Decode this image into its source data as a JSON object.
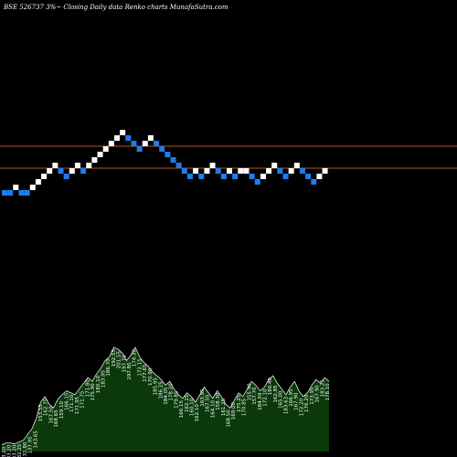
{
  "chart_data": {
    "type": "renko",
    "title": "BSE 526737 3%~  Closing Daily data  Renko  charts MunafaSutra.com",
    "colors": {
      "background": "#000000",
      "up_brick": "#ffffff",
      "down_brick": "#1e7cf0",
      "reference_line": "#b8541c",
      "volume_fill": "#0a3a0a",
      "volume_outline": "#ffffff",
      "text": "#ffffff"
    },
    "bricks": [
      {
        "dir": "down",
        "level": 0
      },
      {
        "dir": "down",
        "level": 0
      },
      {
        "dir": "up",
        "level": 1
      },
      {
        "dir": "down",
        "level": 0
      },
      {
        "dir": "down",
        "level": 0
      },
      {
        "dir": "up",
        "level": 1
      },
      {
        "dir": "up",
        "level": 2
      },
      {
        "dir": "up",
        "level": 3
      },
      {
        "dir": "up",
        "level": 4
      },
      {
        "dir": "up",
        "level": 5
      },
      {
        "dir": "down",
        "level": 4
      },
      {
        "dir": "down",
        "level": 3
      },
      {
        "dir": "up",
        "level": 4
      },
      {
        "dir": "up",
        "level": 5
      },
      {
        "dir": "down",
        "level": 4
      },
      {
        "dir": "up",
        "level": 5
      },
      {
        "dir": "up",
        "level": 6
      },
      {
        "dir": "up",
        "level": 7
      },
      {
        "dir": "up",
        "level": 8
      },
      {
        "dir": "up",
        "level": 9
      },
      {
        "dir": "up",
        "level": 10
      },
      {
        "dir": "up",
        "level": 11
      },
      {
        "dir": "down",
        "level": 10
      },
      {
        "dir": "down",
        "level": 9
      },
      {
        "dir": "down",
        "level": 8
      },
      {
        "dir": "up",
        "level": 9
      },
      {
        "dir": "up",
        "level": 10
      },
      {
        "dir": "down",
        "level": 9
      },
      {
        "dir": "down",
        "level": 8
      },
      {
        "dir": "down",
        "level": 7
      },
      {
        "dir": "down",
        "level": 6
      },
      {
        "dir": "down",
        "level": 5
      },
      {
        "dir": "down",
        "level": 4
      },
      {
        "dir": "down",
        "level": 3
      },
      {
        "dir": "up",
        "level": 4
      },
      {
        "dir": "down",
        "level": 3
      },
      {
        "dir": "up",
        "level": 4
      },
      {
        "dir": "up",
        "level": 5
      },
      {
        "dir": "down",
        "level": 4
      },
      {
        "dir": "down",
        "level": 3
      },
      {
        "dir": "up",
        "level": 4
      },
      {
        "dir": "down",
        "level": 3
      },
      {
        "dir": "up",
        "level": 4
      },
      {
        "dir": "up",
        "level": 4
      },
      {
        "dir": "down",
        "level": 3
      },
      {
        "dir": "down",
        "level": 2
      },
      {
        "dir": "up",
        "level": 3
      },
      {
        "dir": "up",
        "level": 4
      },
      {
        "dir": "up",
        "level": 5
      },
      {
        "dir": "down",
        "level": 4
      },
      {
        "dir": "down",
        "level": 3
      },
      {
        "dir": "up",
        "level": 4
      },
      {
        "dir": "up",
        "level": 5
      },
      {
        "dir": "down",
        "level": 4
      },
      {
        "dir": "down",
        "level": 3
      },
      {
        "dir": "down",
        "level": 2
      },
      {
        "dir": "up",
        "level": 3
      },
      {
        "dir": "up",
        "level": 4
      }
    ],
    "reference_lines": [
      {
        "level": 8.5
      },
      {
        "level": 4.5
      }
    ],
    "volume_labels": [
      "133.20",
      "133.20",
      "133.20",
      "132.25",
      "131.80",
      "137.95",
      "143.65",
      "153.55",
      "162.75",
      "167.50",
      "168.65",
      "159.10",
      "166.15",
      "171.10",
      "171.95",
      "171.75",
      "171.80",
      "175.90",
      "180.10",
      "183.95",
      "186.70",
      "192.55",
      "201.55",
      "197.70",
      "197.80",
      "174.30",
      "172.15",
      "177.65",
      "170.90",
      "185.95",
      "186.25",
      "184.05",
      "178.20",
      "179.85",
      "166.15",
      "162.15",
      "160.10",
      "162.10",
      "163.95",
      "167.50",
      "164.10",
      "158.30",
      "161.25",
      "168.50",
      "169.00",
      "175.25",
      "170.85",
      "155.90",
      "157.70",
      "184.59",
      "172.10",
      "180.40",
      "162.85",
      "165.00",
      "183.63",
      "166.95",
      "167.90",
      "172.20",
      "176.20",
      "173.95",
      "167.90",
      "183.25",
      "178.10"
    ],
    "volume": [
      7,
      9,
      9,
      8,
      10,
      12,
      18,
      24,
      35,
      52,
      58,
      50,
      46,
      55,
      60,
      64,
      62,
      60,
      66,
      72,
      78,
      74,
      82,
      88,
      96,
      100,
      110,
      108,
      104,
      96,
      102,
      110,
      100,
      94,
      90,
      84,
      80,
      76,
      70,
      74,
      66,
      60,
      56,
      62,
      58,
      52,
      60,
      68,
      62,
      56,
      64,
      58,
      50,
      46,
      54,
      62,
      58,
      66,
      74,
      70,
      64,
      68,
      76,
      80,
      72,
      66,
      60,
      68,
      74,
      64,
      58,
      62,
      70,
      76,
      72,
      78,
      74
    ]
  }
}
